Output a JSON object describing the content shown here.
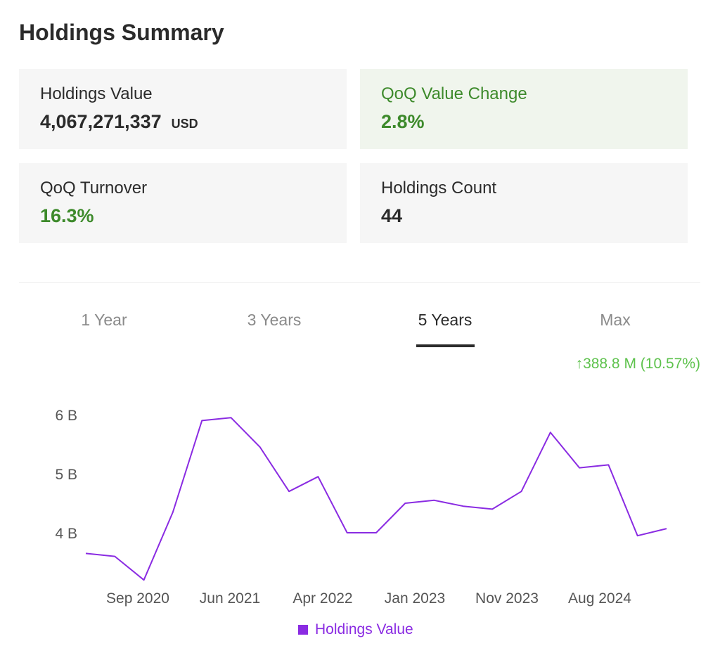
{
  "header": {
    "title": "Holdings Summary"
  },
  "cards": {
    "holdings_value": {
      "label": "Holdings Value",
      "value": "4,067,271,337",
      "unit": "USD"
    },
    "qoq_value_change": {
      "label": "QoQ Value Change",
      "value": "2.8%"
    },
    "qoq_turnover": {
      "label": "QoQ Turnover",
      "value": "16.3%"
    },
    "holdings_count": {
      "label": "Holdings Count",
      "value": "44"
    }
  },
  "tabs": [
    {
      "label": "1 Year",
      "active": false
    },
    {
      "label": "3 Years",
      "active": false
    },
    {
      "label": "5 Years",
      "active": true
    },
    {
      "label": "Max",
      "active": false
    }
  ],
  "change": {
    "arrow": "↑",
    "text": "388.8 M (10.57%)"
  },
  "colors": {
    "positive": "#3d8a2b",
    "change": "#5dc24c",
    "series": "#8a2be2"
  },
  "chart_data": {
    "type": "line",
    "series": [
      {
        "name": "Holdings Value",
        "values": [
          3.65,
          3.6,
          3.2,
          4.35,
          5.9,
          5.95,
          5.45,
          4.7,
          4.95,
          4.0,
          4.0,
          4.5,
          4.55,
          4.45,
          4.4,
          4.7,
          5.7,
          5.1,
          5.15,
          3.95,
          4.07
        ]
      }
    ],
    "x_ticks": [
      "Sep 2020",
      "Jun 2021",
      "Apr 2022",
      "Jan 2023",
      "Nov 2023",
      "Aug 2024"
    ],
    "y_ticks": [
      "6 B",
      "5 B",
      "4 B"
    ],
    "y_tick_values": [
      6,
      5,
      4
    ],
    "ylim": [
      3.2,
      6.0
    ],
    "legend": "bottom",
    "grid": false
  }
}
